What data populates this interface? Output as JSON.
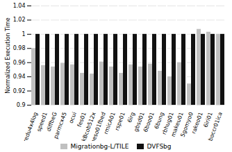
{
  "chart_data": {
    "type": "bar",
    "categories": [
      "redu4x4log",
      "speed1",
      "diffbeG",
      "parmcx45",
      "ocui",
      "fes01",
      "pkBcob512x",
      "beso01fbed",
      "rmicA01",
      "rspe01",
      "6irg",
      "gbsd01",
      "6boo01",
      "6bung",
      "rbhug01",
      "makeu01",
      "5gomyo0",
      "rakeo01",
      "6iri01",
      "boccr01ica"
    ],
    "series": [
      {
        "name": "Migrationbg-L/TILE",
        "color": "#c0c0c0",
        "values": [
          0.98,
          0.956,
          0.954,
          0.959,
          0.957,
          0.945,
          0.944,
          0.961,
          0.954,
          0.945,
          0.957,
          0.954,
          0.958,
          0.948,
          0.94,
          0.96,
          0.93,
          1.007,
          1.003,
          1.0
        ]
      },
      {
        "name": "DVFSbg",
        "color": "#111111",
        "values": [
          1.0,
          1.0,
          1.0,
          1.0,
          1.0,
          1.0,
          1.0,
          1.0,
          1.0,
          1.0,
          1.0,
          1.0,
          1.0,
          1.0,
          1.0,
          1.0,
          1.0,
          1.0,
          1.0,
          1.0
        ]
      }
    ],
    "ylabel": "Normalized Execution Time",
    "ylim": [
      0.9,
      1.04
    ],
    "yticks": [
      0.9,
      0.92,
      0.94,
      0.96,
      0.98,
      1,
      1.02,
      1.04
    ],
    "grid": true,
    "legend": "bottom"
  }
}
